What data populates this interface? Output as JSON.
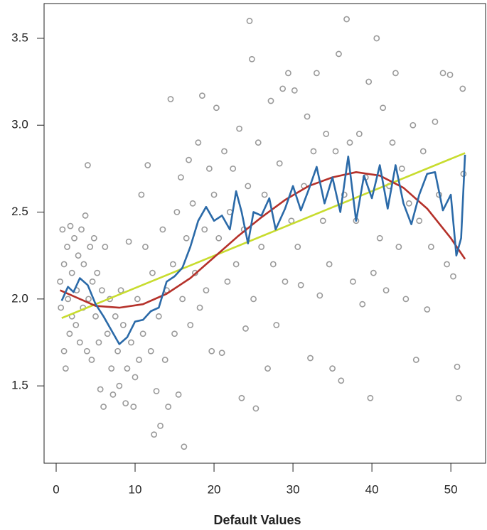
{
  "chart_data": {
    "type": "scatter",
    "xlabel": "Default Values",
    "xlim": [
      -1.53,
      54.4
    ],
    "ylim": [
      1.055,
      3.7
    ],
    "xticks": [
      0,
      10,
      20,
      30,
      40,
      50
    ],
    "yticks": [
      {
        "value": 1.5,
        "label": "1.5"
      },
      {
        "value": 2.0,
        "label": "2.0"
      },
      {
        "value": 2.5,
        "label": "2.5"
      },
      {
        "value": 3.0,
        "label": "3.0"
      },
      {
        "value": 3.5,
        "label": "3.5"
      }
    ],
    "series": [
      {
        "kind": "points",
        "color": "#9a9a9a",
        "x": [
          0.5,
          0.6,
          0.8,
          1,
          1,
          1.2,
          1.4,
          1.5,
          1.7,
          1.8,
          2,
          2,
          2.3,
          2.5,
          2.6,
          2.8,
          3,
          3.2,
          3.4,
          3.5,
          3.7,
          3.9,
          4,
          4.1,
          4.3,
          4.5,
          4.6,
          4.8,
          5,
          5.2,
          5.4,
          5.6,
          5.8,
          6,
          6.2,
          6.5,
          6.8,
          7,
          7.2,
          7.5,
          7.8,
          8,
          8.2,
          8.5,
          8.8,
          9,
          9.2,
          9.5,
          9.8,
          10,
          10.3,
          10.5,
          10.8,
          11,
          11.3,
          11.6,
          12,
          12.2,
          12.4,
          12.7,
          13,
          13.2,
          13.5,
          13.8,
          14,
          14.2,
          14.5,
          14.8,
          15,
          15.3,
          15.5,
          15.8,
          16,
          16.2,
          16.5,
          16.8,
          17,
          17.3,
          17.6,
          18,
          18.2,
          18.5,
          18.8,
          19,
          19.4,
          19.7,
          20,
          20.3,
          20.6,
          21,
          21.3,
          21.7,
          22,
          22.4,
          22.8,
          23.2,
          23.5,
          23.8,
          24,
          24.3,
          24.5,
          24.8,
          25,
          25.3,
          25.6,
          26,
          26.4,
          26.8,
          27.2,
          27.5,
          27.9,
          28.3,
          28.7,
          29,
          29.4,
          29.8,
          30.2,
          30.6,
          31,
          31.4,
          31.8,
          32.2,
          32.6,
          33,
          33.4,
          33.8,
          34.2,
          34.6,
          35,
          35.4,
          35.8,
          36.1,
          36.5,
          36.8,
          37.2,
          37.6,
          38,
          38.4,
          38.8,
          39.2,
          39.6,
          39.8,
          40.2,
          40.6,
          41,
          41.4,
          41.8,
          42.2,
          42.6,
          43,
          43.4,
          43.8,
          44.3,
          44.7,
          45.2,
          45.6,
          46,
          46.5,
          47,
          47.5,
          48,
          48.5,
          49,
          49.5,
          49.9,
          50.3,
          50.8,
          51,
          51.5,
          51.6
        ],
        "values": [
          2.1,
          1.95,
          2.4,
          2.2,
          1.7,
          1.6,
          2.3,
          2.0,
          1.8,
          2.42,
          2.15,
          1.9,
          2.35,
          1.85,
          2.05,
          2.25,
          1.75,
          2.4,
          1.95,
          2.2,
          2.48,
          1.7,
          2.77,
          2.0,
          2.3,
          1.65,
          2.1,
          2.35,
          1.9,
          2.15,
          1.75,
          1.48,
          2.05,
          1.38,
          2.3,
          1.8,
          2.0,
          1.6,
          1.45,
          1.9,
          1.7,
          1.5,
          2.05,
          1.85,
          1.4,
          1.6,
          2.33,
          1.75,
          1.38,
          1.55,
          2.0,
          1.65,
          2.6,
          1.8,
          2.3,
          2.77,
          1.7,
          2.15,
          1.22,
          1.47,
          1.9,
          1.27,
          2.4,
          1.65,
          2.05,
          1.38,
          3.15,
          2.2,
          1.8,
          2.5,
          1.45,
          2.7,
          2.0,
          1.15,
          2.35,
          2.8,
          1.85,
          2.55,
          2.15,
          2.9,
          1.95,
          3.17,
          2.4,
          2.05,
          2.75,
          1.7,
          2.6,
          3.1,
          2.35,
          1.69,
          2.85,
          2.1,
          2.5,
          2.75,
          2.2,
          2.98,
          1.43,
          2.4,
          1.83,
          2.65,
          3.6,
          3.38,
          2.0,
          1.37,
          2.9,
          2.3,
          2.6,
          1.6,
          3.14,
          2.2,
          1.85,
          2.78,
          3.21,
          2.1,
          3.3,
          2.45,
          3.2,
          2.3,
          2.08,
          2.65,
          3.05,
          1.66,
          2.85,
          3.3,
          2.02,
          2.45,
          2.95,
          2.2,
          1.6,
          2.85,
          3.41,
          1.53,
          2.6,
          3.61,
          2.9,
          2.1,
          2.45,
          2.95,
          1.97,
          2.7,
          3.25,
          1.43,
          2.15,
          3.5,
          2.35,
          3.1,
          2.05,
          2.65,
          2.9,
          3.3,
          2.3,
          2.75,
          2.0,
          2.55,
          3.0,
          1.65,
          2.45,
          2.85,
          1.94,
          2.3,
          3.02,
          2.6,
          3.3,
          2.2,
          3.29,
          2.13,
          1.61,
          1.43,
          3.21,
          2.72
        ]
      },
      {
        "kind": "line",
        "color": "#c8dc2e",
        "x": [
          0.7,
          51.8
        ],
        "values": [
          1.89,
          2.84
        ]
      },
      {
        "kind": "line",
        "color": "#b5312a",
        "x": [
          0.5,
          3,
          5,
          8,
          11,
          14,
          17,
          20,
          23,
          26,
          29,
          32,
          35,
          38,
          41,
          44,
          47,
          50,
          51.8
        ],
        "values": [
          2.05,
          2.0,
          1.96,
          1.95,
          1.97,
          2.03,
          2.12,
          2.24,
          2.36,
          2.47,
          2.57,
          2.65,
          2.7,
          2.73,
          2.71,
          2.64,
          2.52,
          2.35,
          2.23
        ]
      },
      {
        "kind": "line",
        "color": "#2b6aa8",
        "x": [
          0.7,
          1.5,
          2.2,
          3,
          4,
          5,
          6,
          7,
          8,
          9,
          10,
          11,
          12,
          13,
          14,
          15,
          16,
          17,
          18,
          19,
          20,
          21,
          22,
          22.8,
          23.5,
          24.3,
          25,
          26,
          27,
          27.8,
          29,
          30,
          31,
          32,
          33,
          34,
          35,
          36,
          37,
          38,
          39,
          40,
          41,
          42,
          43,
          44,
          45,
          46,
          47,
          48,
          49,
          50,
          50.7,
          51.3,
          51.8
        ],
        "values": [
          1.99,
          2.07,
          2.04,
          2.12,
          2.08,
          1.97,
          1.9,
          1.82,
          1.74,
          1.78,
          1.87,
          1.88,
          1.93,
          1.95,
          2.1,
          2.13,
          2.18,
          2.3,
          2.45,
          2.53,
          2.45,
          2.48,
          2.4,
          2.62,
          2.5,
          2.32,
          2.5,
          2.48,
          2.58,
          2.4,
          2.52,
          2.65,
          2.51,
          2.63,
          2.76,
          2.55,
          2.7,
          2.5,
          2.82,
          2.45,
          2.71,
          2.58,
          2.77,
          2.52,
          2.77,
          2.55,
          2.43,
          2.6,
          2.72,
          2.73,
          2.51,
          2.6,
          2.25,
          2.35,
          2.83
        ]
      }
    ]
  }
}
